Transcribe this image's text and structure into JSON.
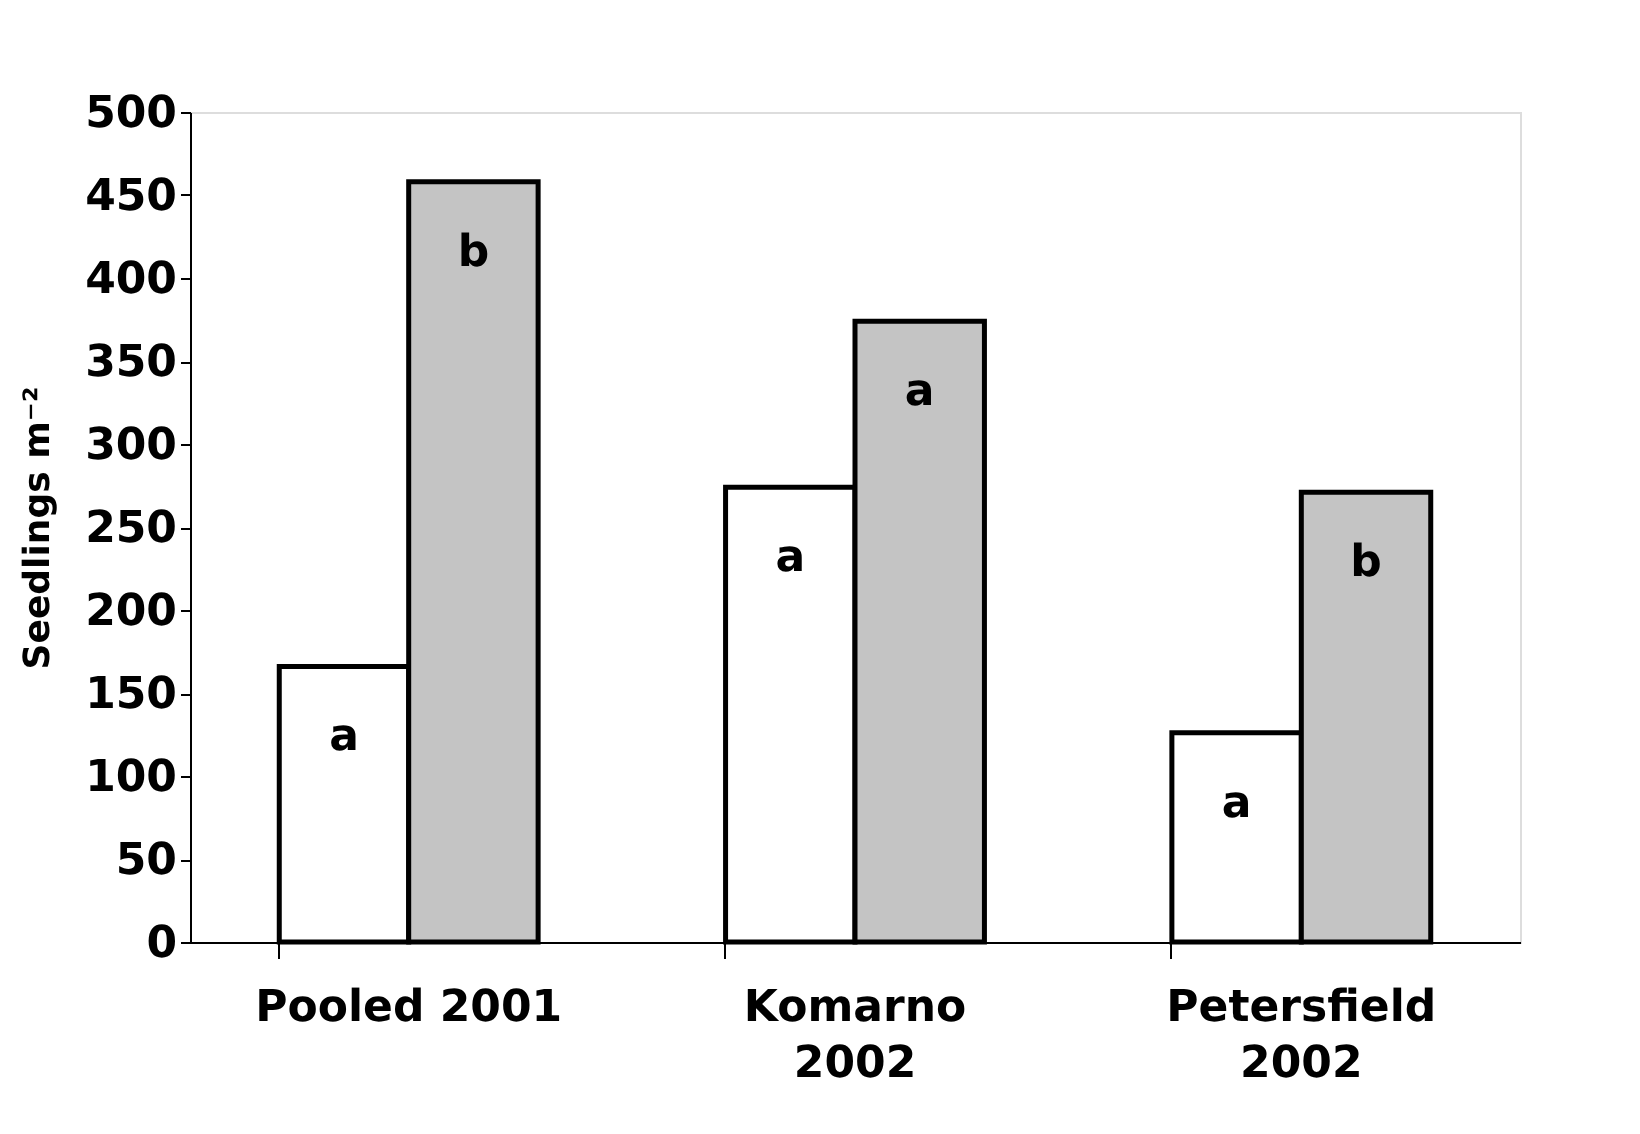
{
  "chart_data": {
    "type": "bar",
    "ylabel": "Seedlings m⁻²",
    "categories": [
      "Pooled 2001",
      "Komarno\n2002",
      "Petersfield\n2002"
    ],
    "series": [
      {
        "color": "#ffffff",
        "values": [
          166,
          274,
          126
        ],
        "value_labels": [
          "a",
          "a",
          "a"
        ]
      },
      {
        "color": "#c4c4c4",
        "values": [
          458,
          374,
          271
        ],
        "value_labels": [
          "b",
          "a",
          "b"
        ]
      }
    ],
    "ylim": [
      0,
      500
    ],
    "yticks": [
      0,
      50,
      100,
      150,
      200,
      250,
      300,
      350,
      400,
      450,
      500
    ],
    "grid": false,
    "legend": false
  }
}
